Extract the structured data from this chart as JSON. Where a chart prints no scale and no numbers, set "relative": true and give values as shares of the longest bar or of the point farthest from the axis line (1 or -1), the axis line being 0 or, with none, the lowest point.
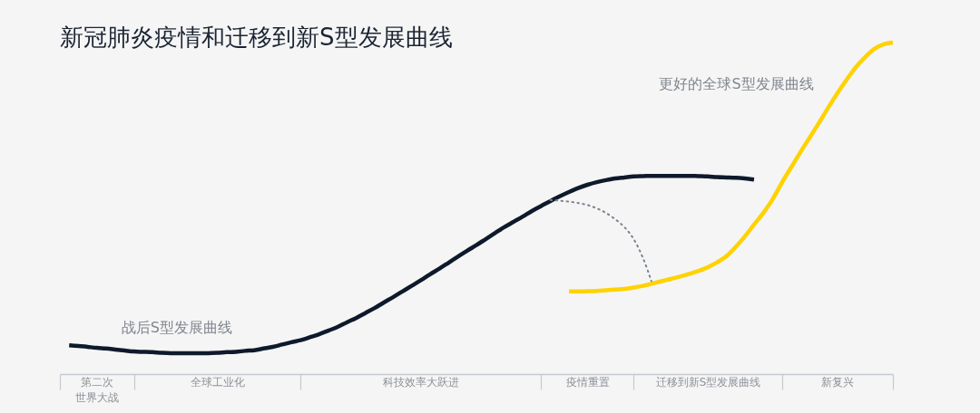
{
  "chart_data": {
    "type": "line",
    "title": "新冠肺炎疫情和迁移到新S型发展曲线",
    "relative": true,
    "categories": [
      null,
      null,
      null,
      null,
      "第二次世界大战",
      null,
      null,
      null,
      null,
      null,
      null,
      null,
      null,
      null,
      null,
      null,
      null,
      "全球工业化",
      null,
      null,
      null,
      null,
      null,
      null,
      null,
      null,
      null,
      null,
      null,
      null,
      null,
      null,
      null,
      null,
      null,
      null,
      null,
      null,
      null,
      "科技效率大跃进",
      null,
      null,
      null,
      null,
      null,
      null,
      null,
      null,
      null,
      null,
      null,
      null,
      null,
      null,
      null,
      null,
      null,
      "疫情重置",
      null,
      null,
      null,
      null,
      null,
      null,
      null,
      null,
      null,
      null,
      null,
      null,
      "迁移到新S型发展曲线",
      null,
      null,
      null,
      null,
      null,
      null,
      null,
      null,
      null,
      null,
      null,
      null,
      null,
      "新复兴",
      null,
      null,
      null,
      null,
      null,
      null
    ],
    "series": [
      {
        "name": "战后S型发展曲线",
        "color": "#0e1a2b",
        "values": [
          null,
          0.087,
          0.085,
          0.082,
          0.079,
          0.077,
          0.074,
          0.071,
          0.068,
          0.067,
          0.066,
          0.064,
          0.063,
          0.063,
          0.063,
          0.063,
          0.063,
          0.064,
          0.066,
          0.067,
          0.07,
          0.072,
          0.077,
          0.082,
          0.089,
          0.096,
          0.102,
          0.111,
          0.12,
          0.131,
          0.142,
          0.156,
          0.169,
          0.184,
          0.199,
          0.216,
          0.232,
          0.249,
          0.266,
          0.283,
          0.301,
          0.318,
          0.336,
          0.354,
          0.372,
          0.389,
          0.407,
          0.425,
          0.443,
          0.459,
          0.475,
          0.492,
          0.507,
          0.522,
          0.536,
          0.549,
          0.561,
          0.571,
          0.579,
          0.585,
          0.59,
          0.593,
          0.596,
          0.597,
          0.598,
          0.598,
          0.598,
          0.598,
          0.598,
          0.597,
          0.596,
          0.594,
          0.593,
          0.592,
          0.59,
          0.587,
          null,
          null,
          null,
          null,
          null,
          null,
          null,
          null,
          null,
          null,
          null,
          null,
          null,
          null,
          null
        ]
      },
      {
        "color": "#7b8390",
        "line_style": "dotted",
        "values": [
          null,
          null,
          null,
          null,
          null,
          null,
          null,
          null,
          null,
          null,
          null,
          null,
          null,
          null,
          null,
          null,
          null,
          null,
          null,
          null,
          null,
          null,
          null,
          null,
          null,
          null,
          null,
          null,
          null,
          null,
          null,
          null,
          null,
          null,
          null,
          null,
          null,
          null,
          null,
          null,
          null,
          null,
          null,
          null,
          null,
          null,
          null,
          null,
          null,
          null,
          null,
          null,
          null,
          0.525,
          0.523,
          0.52,
          0.516,
          0.51,
          0.5,
          0.486,
          0.467,
          0.443,
          0.407,
          0.35,
          0.273,
          null,
          null,
          null,
          null,
          null,
          null,
          null,
          null,
          null,
          null,
          null,
          null,
          null,
          null,
          null,
          null,
          null,
          null,
          null,
          null,
          null,
          null,
          null,
          null,
          null,
          null
        ]
      },
      {
        "name": "更好的全球S型发展曲线",
        "color": "#ffd200",
        "values": [
          null,
          null,
          null,
          null,
          null,
          null,
          null,
          null,
          null,
          null,
          null,
          null,
          null,
          null,
          null,
          null,
          null,
          null,
          null,
          null,
          null,
          null,
          null,
          null,
          null,
          null,
          null,
          null,
          null,
          null,
          null,
          null,
          null,
          null,
          null,
          null,
          null,
          null,
          null,
          null,
          null,
          null,
          null,
          null,
          null,
          null,
          null,
          null,
          null,
          null,
          null,
          null,
          null,
          null,
          null,
          0.249,
          0.249,
          0.25,
          0.251,
          0.253,
          0.255,
          0.257,
          0.261,
          0.266,
          0.273,
          0.28,
          0.287,
          0.294,
          0.302,
          0.311,
          0.322,
          0.337,
          0.355,
          0.383,
          0.415,
          0.451,
          0.486,
          0.527,
          0.577,
          0.623,
          0.669,
          0.713,
          0.757,
          0.803,
          0.847,
          0.888,
          0.926,
          0.956,
          0.981,
          0.995,
          1.0
        ]
      }
    ]
  }
}
